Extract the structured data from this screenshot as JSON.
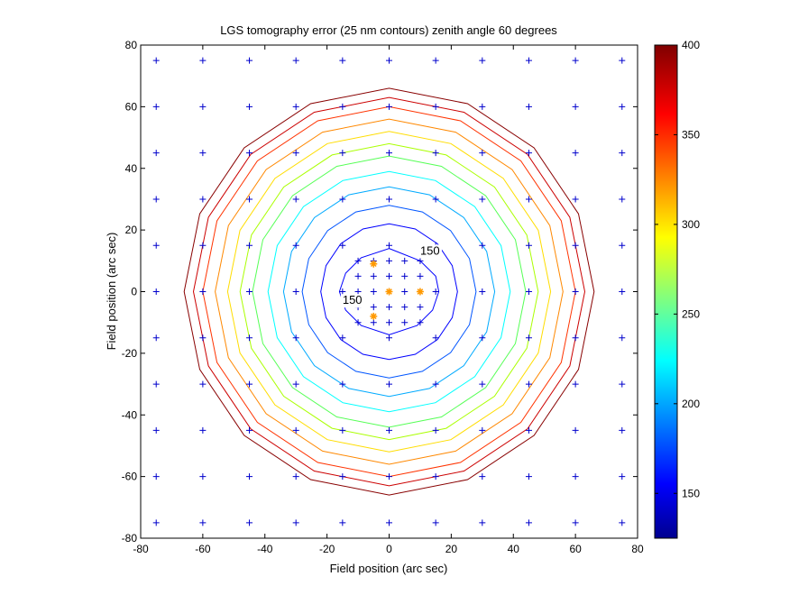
{
  "chart_data": {
    "type": "contour",
    "title": "LGS tomography error (25 nm contours) zenith angle 60 degrees",
    "xlabel": "Field position (arc sec)",
    "ylabel": "Field position (arc sec)",
    "xlim": [
      -80,
      80
    ],
    "ylim": [
      -80,
      80
    ],
    "x_ticks": [
      -80,
      -60,
      -40,
      -20,
      0,
      20,
      40,
      60,
      80
    ],
    "y_ticks": [
      -80,
      -60,
      -40,
      -20,
      0,
      20,
      40,
      60,
      80
    ],
    "x_tick_labels": [
      "-80",
      "-60",
      "-40",
      "-20",
      "0",
      "20",
      "40",
      "60",
      "80"
    ],
    "y_tick_labels": [
      "-80",
      "-60",
      "-40",
      "-20",
      "0",
      "20",
      "40",
      "60",
      "80"
    ],
    "grid": false,
    "contours": [
      {
        "level": 150,
        "radius": 22,
        "color": "#0000ff"
      },
      {
        "level": 175,
        "radius": 28,
        "color": "#0055ff"
      },
      {
        "level": 200,
        "radius": 34,
        "color": "#00aaff"
      },
      {
        "level": 225,
        "radius": 39,
        "color": "#00ffff"
      },
      {
        "level": 250,
        "radius": 44,
        "color": "#55ff55"
      },
      {
        "level": 275,
        "radius": 48,
        "color": "#aaff00"
      },
      {
        "level": 300,
        "radius": 52,
        "color": "#ffdd00"
      },
      {
        "level": 325,
        "radius": 56,
        "color": "#ff8800"
      },
      {
        "level": 350,
        "radius": 60,
        "color": "#ff3300"
      },
      {
        "level": 375,
        "radius": 63,
        "color": "#cc0000"
      },
      {
        "level": 400,
        "radius": 66,
        "color": "#880000"
      }
    ],
    "inner_contour": {
      "level": 150,
      "color": "#0000ff",
      "points": [
        [
          0,
          14
        ],
        [
          10,
          10
        ],
        [
          15,
          5
        ],
        [
          16,
          0
        ],
        [
          14,
          -6
        ],
        [
          9,
          -11
        ],
        [
          0,
          -14
        ],
        [
          -9,
          -11
        ],
        [
          -14,
          -6
        ],
        [
          -16,
          0
        ],
        [
          -14,
          6
        ],
        [
          -9,
          11
        ]
      ]
    },
    "contour_labels": [
      {
        "text": "150",
        "x": 10,
        "y": 12
      },
      {
        "text": "150",
        "x": -15,
        "y": -4
      }
    ],
    "grid_points": {
      "x": [
        -75,
        -60,
        -45,
        -30,
        -15,
        0,
        15,
        30,
        45,
        60,
        75
      ],
      "y": [
        75,
        60,
        45,
        30,
        15,
        0,
        -15,
        -30,
        -45,
        -60,
        -75
      ],
      "color": "#0000cc"
    },
    "inner_points": {
      "x": [
        -10,
        -5,
        0,
        5,
        10
      ],
      "y": [
        10,
        5,
        0,
        -5,
        -10
      ],
      "color": "#0000cc"
    },
    "lgs_stars": {
      "color": "#ff9900",
      "points": [
        [
          -5,
          9
        ],
        [
          10,
          0
        ],
        [
          -5,
          -8
        ],
        [
          0,
          0
        ]
      ]
    },
    "colorbar": {
      "range": [
        125,
        400
      ],
      "ticks": [
        150,
        200,
        250,
        300,
        350,
        400
      ],
      "tick_labels": [
        "150",
        "200",
        "250",
        "300",
        "350",
        "400"
      ]
    }
  }
}
